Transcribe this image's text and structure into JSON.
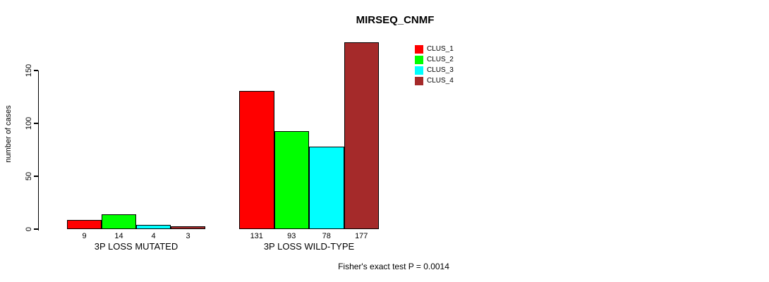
{
  "chart_data": {
    "type": "bar",
    "title": "MIRSEQ_CNMF",
    "ylabel": "number of cases",
    "xlabel": "",
    "yticks": [
      0,
      50,
      100,
      150
    ],
    "ylim": [
      0,
      177
    ],
    "grid": false,
    "legend_position": "top-right",
    "categories": [
      "3P LOSS MUTATED",
      "3P LOSS WILD-TYPE"
    ],
    "series": [
      {
        "name": "CLUS_1",
        "color": "#FF0000",
        "values": [
          9,
          131
        ]
      },
      {
        "name": "CLUS_2",
        "color": "#00FF00",
        "values": [
          14,
          93
        ]
      },
      {
        "name": "CLUS_3",
        "color": "#00FFFF",
        "values": [
          4,
          78
        ]
      },
      {
        "name": "CLUS_4",
        "color": "#A52A2A",
        "values": [
          3,
          177
        ]
      }
    ],
    "bar_value_labels": [
      [
        9,
        14,
        4,
        3
      ],
      [
        131,
        93,
        78,
        177
      ]
    ],
    "caption": "Fisher's exact test P = 0.0014",
    "colors": {
      "axis": "#000000",
      "bar_border": "#000000",
      "text": "#000000",
      "background": "#FFFFFF"
    }
  }
}
